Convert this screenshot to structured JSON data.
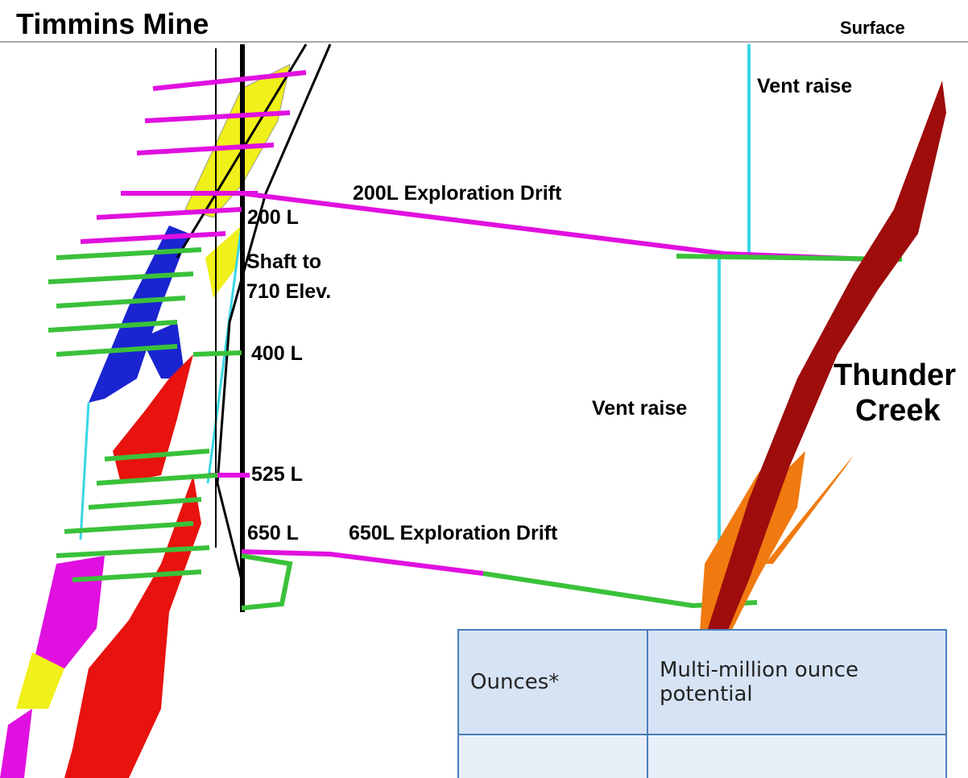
{
  "header": {
    "title": "Timmins Mine",
    "surface_label": "Surface"
  },
  "labels": {
    "vent_raise_top": "Vent raise",
    "drift_200": "200L Exploration Drift",
    "level_200": "200 L",
    "shaft": [
      "Shaft to",
      "710 Elev."
    ],
    "level_400": "400 L",
    "level_525": "525 L",
    "level_650": "650 L",
    "drift_650": "650L Exploration Drift",
    "vent_raise_bottom": "Vent raise",
    "deposit": [
      "Thunder",
      "Creek"
    ]
  },
  "table": {
    "rows": [
      [
        "Ounces*",
        "Multi-million ounce potential"
      ]
    ]
  }
}
